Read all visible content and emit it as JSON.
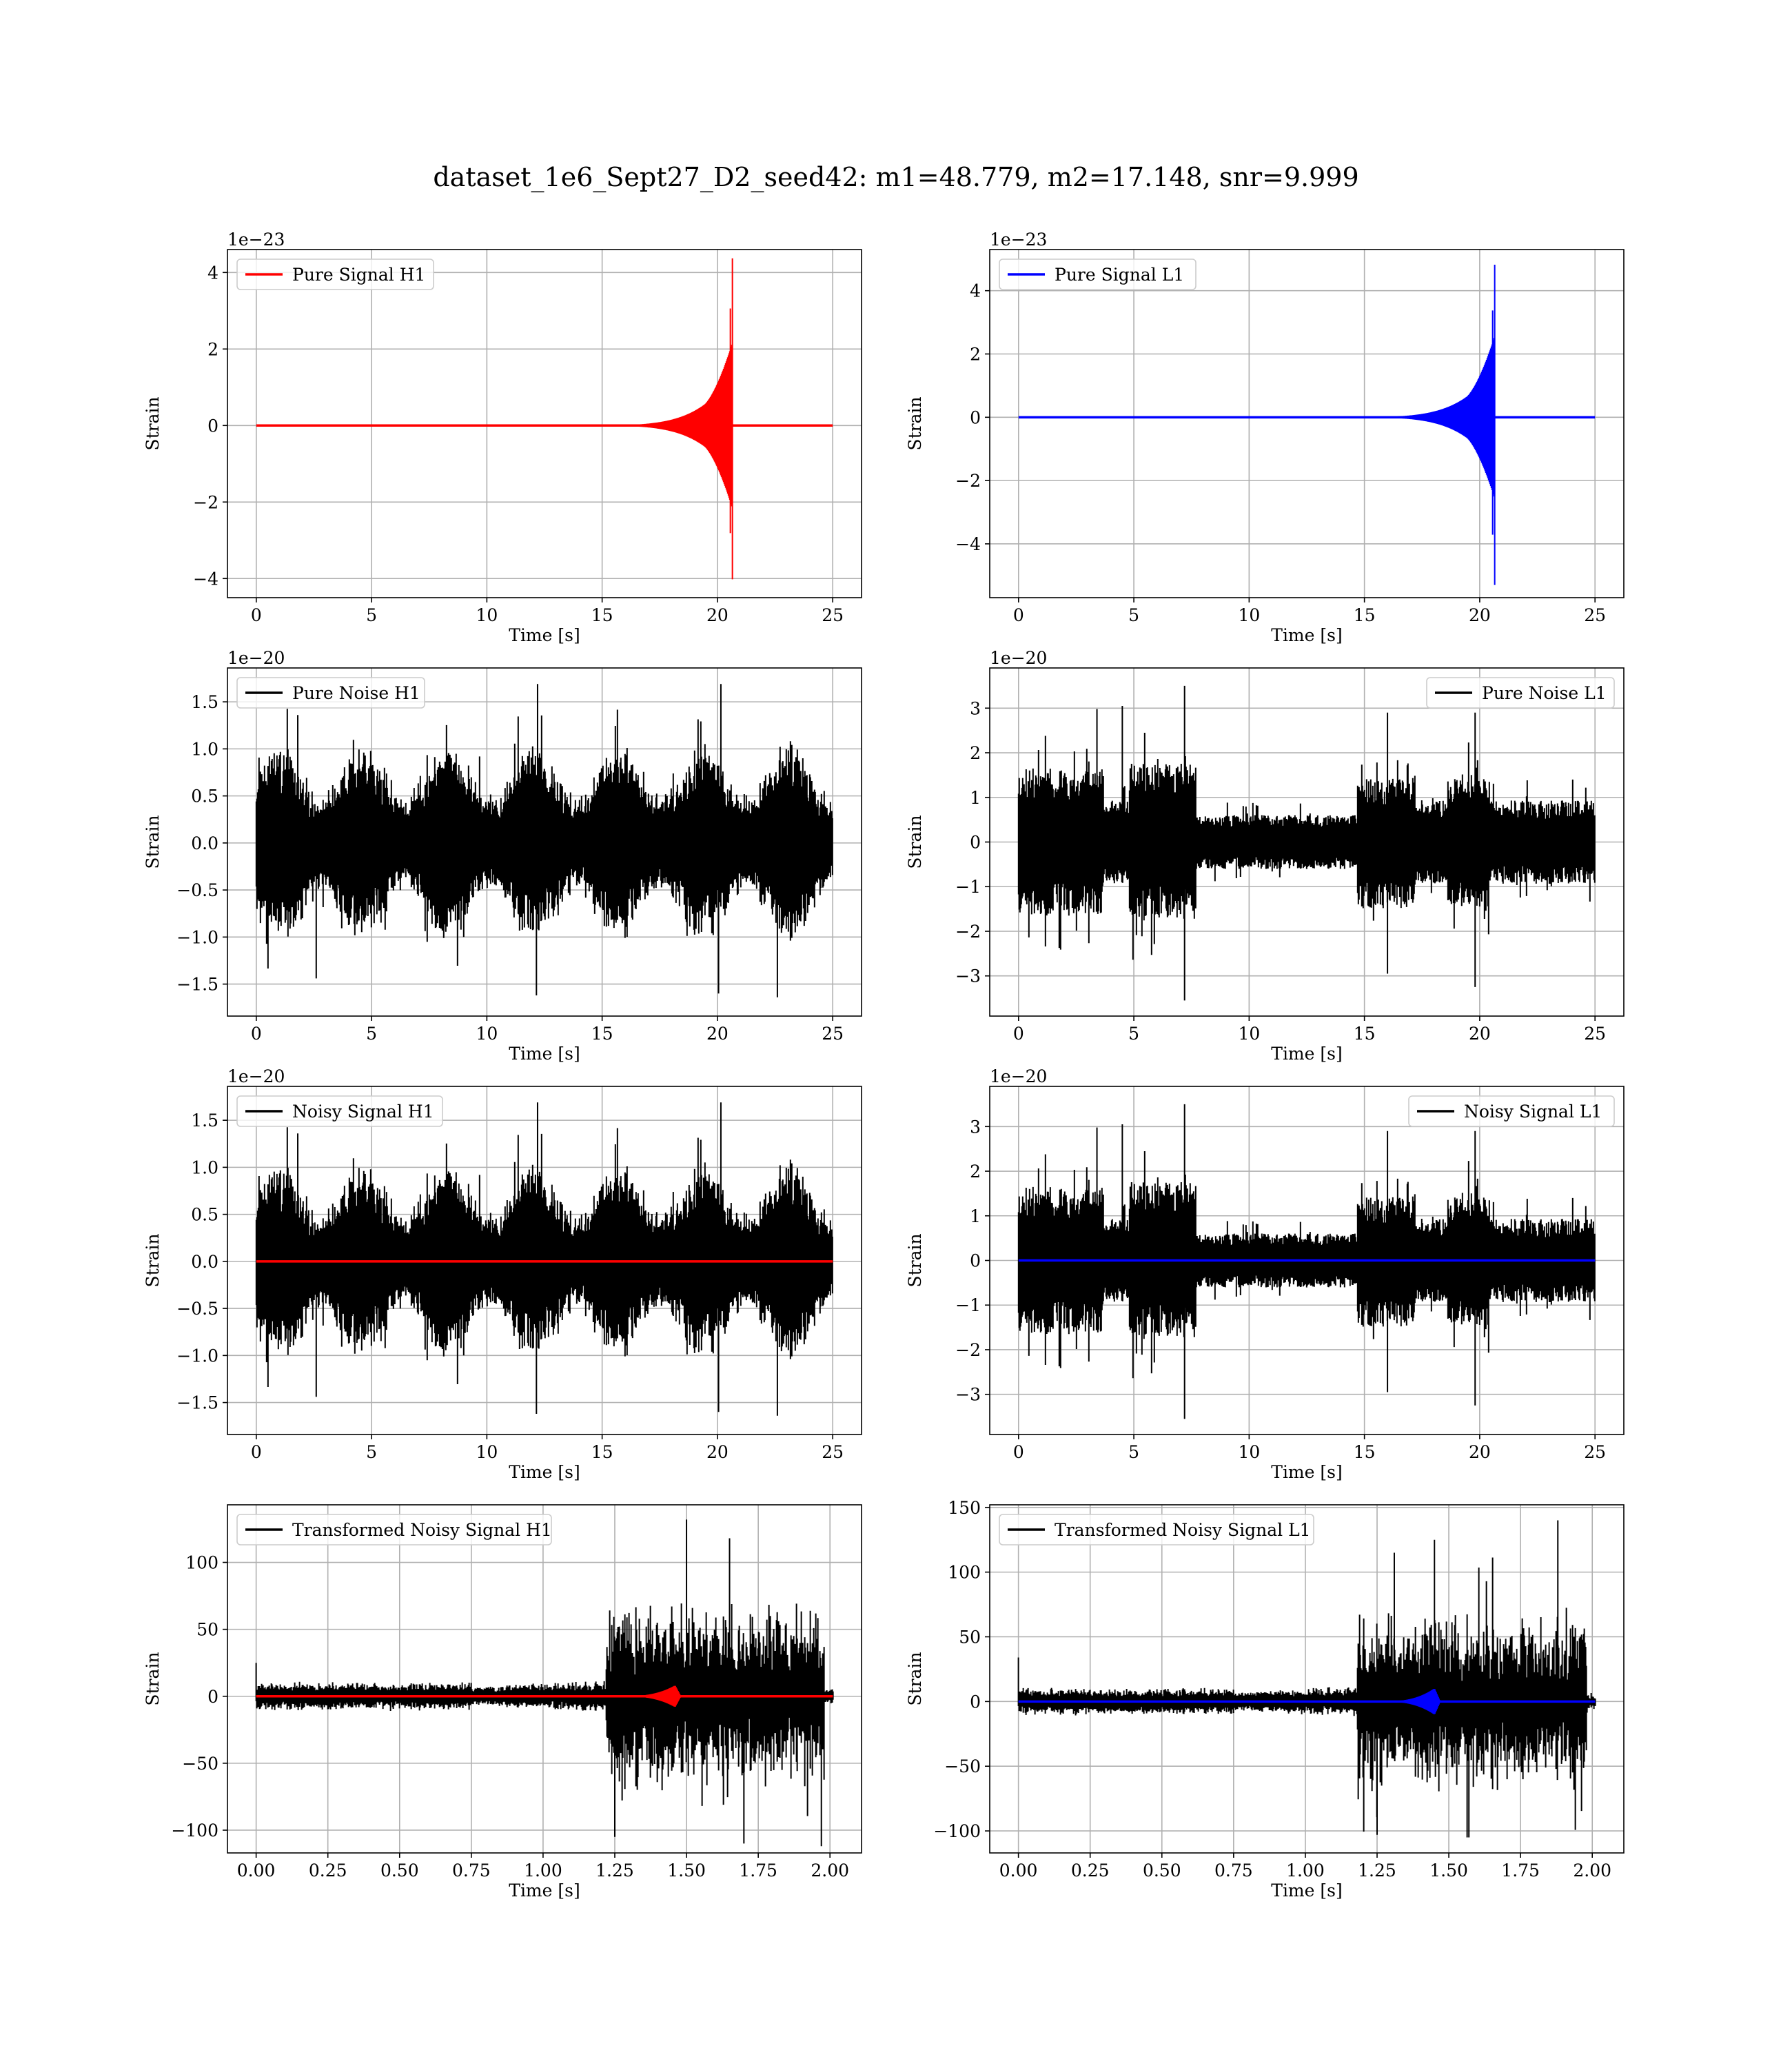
{
  "figure": {
    "title": "dataset_1e6_Sept27_D2_seed42: m1=48.779, m2=17.148, snr=9.999"
  },
  "chart_data": [
    {
      "type": "line",
      "legend": "Pure Signal H1",
      "legend_loc": "upper-left",
      "color": "#ff0000",
      "xlabel": "Time [s]",
      "ylabel": "Strain",
      "offset_text": "1e−23",
      "xlim": [
        -1.25,
        26.25
      ],
      "ylim": [
        -4.5,
        4.6
      ],
      "xticks": [
        0,
        5,
        10,
        15,
        20,
        25
      ],
      "xticklabels": [
        "0",
        "5",
        "10",
        "15",
        "20",
        "25"
      ],
      "yticks": [
        -4,
        -2,
        0,
        2,
        4
      ],
      "yticklabels": [
        "−4",
        "−2",
        "0",
        "2",
        "4"
      ],
      "series": [
        {
          "kind": "chirp",
          "color": "#ff0000",
          "x_start": 0,
          "x_end": 25,
          "t_merge": 20.65,
          "peak_pos": 4.37,
          "peak_neg": -4.02,
          "pre_merge_amp": 1.35,
          "onset": 12.0
        }
      ]
    },
    {
      "type": "line",
      "legend": "Pure Signal L1",
      "legend_loc": "upper-left",
      "color": "#0000ff",
      "xlabel": "Time [s]",
      "ylabel": "Strain",
      "offset_text": "1e−23",
      "xlim": [
        -1.25,
        26.25
      ],
      "ylim": [
        -5.7,
        5.3
      ],
      "xticks": [
        0,
        5,
        10,
        15,
        20,
        25
      ],
      "xticklabels": [
        "0",
        "5",
        "10",
        "15",
        "20",
        "25"
      ],
      "yticks": [
        -4,
        -2,
        0,
        2,
        4
      ],
      "yticklabels": [
        "−4",
        "−2",
        "0",
        "2",
        "4"
      ],
      "series": [
        {
          "kind": "chirp",
          "color": "#0000ff",
          "x_start": 0,
          "x_end": 25,
          "t_merge": 20.65,
          "peak_pos": 4.82,
          "peak_neg": -5.3,
          "pre_merge_amp": 1.6,
          "onset": 12.0
        }
      ]
    },
    {
      "type": "line",
      "legend": "Pure Noise H1",
      "legend_loc": "upper-left",
      "color": "#000000",
      "xlabel": "Time [s]",
      "ylabel": "Strain",
      "offset_text": "1e−20",
      "xlim": [
        -1.25,
        26.25
      ],
      "ylim": [
        -1.84,
        1.86
      ],
      "xticks": [
        0,
        5,
        10,
        15,
        20,
        25
      ],
      "xticklabels": [
        "0",
        "5",
        "10",
        "15",
        "20",
        "25"
      ],
      "yticks": [
        -1.5,
        -1.0,
        -0.5,
        0.0,
        0.5,
        1.0,
        1.5
      ],
      "yticklabels": [
        "−1.5",
        "−1.0",
        "−0.5",
        "0.0",
        "0.5",
        "1.0",
        "1.5"
      ],
      "series": [
        {
          "kind": "noise",
          "color": "#000000",
          "x_start": 0,
          "x_end": 25,
          "base_amp": 0.85,
          "max": 1.69,
          "min": -1.64,
          "seed": 11
        }
      ]
    },
    {
      "type": "line",
      "legend": "Pure Noise L1",
      "legend_loc": "upper-right",
      "color": "#000000",
      "xlabel": "Time [s]",
      "ylabel": "Strain",
      "offset_text": "1e−20",
      "xlim": [
        -1.25,
        26.25
      ],
      "ylim": [
        -3.9,
        3.9
      ],
      "xticks": [
        0,
        5,
        10,
        15,
        20,
        25
      ],
      "xticklabels": [
        "0",
        "5",
        "10",
        "15",
        "20",
        "25"
      ],
      "yticks": [
        -3,
        -2,
        -1,
        0,
        1,
        2,
        3
      ],
      "yticklabels": [
        "−3",
        "−2",
        "−1",
        "0",
        "1",
        "2",
        "3"
      ],
      "series": [
        {
          "kind": "noise_env",
          "color": "#000000",
          "x_start": 0,
          "x_end": 25,
          "max": 3.5,
          "min": -3.55,
          "seed": 23
        }
      ]
    },
    {
      "type": "line",
      "legend": "Noisy Signal H1",
      "legend_loc": "upper-left",
      "color": "#000000",
      "xlabel": "Time [s]",
      "ylabel": "Strain",
      "offset_text": "1e−20",
      "xlim": [
        -1.25,
        26.25
      ],
      "ylim": [
        -1.84,
        1.86
      ],
      "xticks": [
        0,
        5,
        10,
        15,
        20,
        25
      ],
      "xticklabels": [
        "0",
        "5",
        "10",
        "15",
        "20",
        "25"
      ],
      "yticks": [
        -1.5,
        -1.0,
        -0.5,
        0.0,
        0.5,
        1.0,
        1.5
      ],
      "yticklabels": [
        "−1.5",
        "−1.0",
        "−0.5",
        "0.0",
        "0.5",
        "1.0",
        "1.5"
      ],
      "series": [
        {
          "kind": "noise",
          "color": "#000000",
          "x_start": 0,
          "x_end": 25,
          "base_amp": 0.85,
          "max": 1.69,
          "min": -1.64,
          "seed": 11
        },
        {
          "kind": "flat",
          "color": "#ff0000",
          "x_start": 0,
          "x_end": 25,
          "value": 0
        }
      ]
    },
    {
      "type": "line",
      "legend": "Noisy Signal L1",
      "legend_loc": "upper-right",
      "color": "#000000",
      "xlabel": "Time [s]",
      "ylabel": "Strain",
      "offset_text": "1e−20",
      "xlim": [
        -1.25,
        26.25
      ],
      "ylim": [
        -3.9,
        3.9
      ],
      "xticks": [
        0,
        5,
        10,
        15,
        20,
        25
      ],
      "xticklabels": [
        "0",
        "5",
        "10",
        "15",
        "20",
        "25"
      ],
      "yticks": [
        -3,
        -2,
        -1,
        0,
        1,
        2,
        3
      ],
      "yticklabels": [
        "−3",
        "−2",
        "−1",
        "0",
        "1",
        "2",
        "3"
      ],
      "series": [
        {
          "kind": "noise_env",
          "color": "#000000",
          "x_start": 0,
          "x_end": 25,
          "max": 3.5,
          "min": -3.55,
          "seed": 23
        },
        {
          "kind": "flat",
          "color": "#0000ff",
          "x_start": 0,
          "x_end": 25,
          "value": 0
        }
      ]
    },
    {
      "type": "line",
      "legend": "Transformed Noisy Signal H1",
      "legend_loc": "upper-left",
      "color": "#000000",
      "xlabel": "Time [s]",
      "ylabel": "Strain",
      "offset_text": "",
      "xlim": [
        -0.1,
        2.11
      ],
      "ylim": [
        -117,
        143
      ],
      "xticks": [
        0,
        0.25,
        0.5,
        0.75,
        1.0,
        1.25,
        1.5,
        1.75,
        2.0
      ],
      "xticklabels": [
        "0.00",
        "0.25",
        "0.50",
        "0.75",
        "1.00",
        "1.25",
        "1.50",
        "1.75",
        "2.00"
      ],
      "yticks": [
        -100,
        -50,
        0,
        50,
        100
      ],
      "yticklabels": [
        "−100",
        "−50",
        "0",
        "50",
        "100"
      ],
      "series": [
        {
          "kind": "transformed",
          "color": "#000000",
          "x_start": 0,
          "x_end": 2.01,
          "max": 132,
          "min": -112,
          "rise": 1.22,
          "seed": 31
        },
        {
          "kind": "burst",
          "color": "#ff0000",
          "x_start": 0,
          "x_end": 2.01,
          "t_peak": 1.46,
          "amp": 8
        }
      ]
    },
    {
      "type": "line",
      "legend": "Transformed Noisy Signal L1",
      "legend_loc": "upper-left",
      "color": "#000000",
      "xlabel": "Time [s]",
      "ylabel": "Strain",
      "offset_text": "",
      "xlim": [
        -0.1,
        2.11
      ],
      "ylim": [
        -117,
        152
      ],
      "xticks": [
        0,
        0.25,
        0.5,
        0.75,
        1.0,
        1.25,
        1.5,
        1.75,
        2.0
      ],
      "xticklabels": [
        "0.00",
        "0.25",
        "0.50",
        "0.75",
        "1.00",
        "1.25",
        "1.50",
        "1.75",
        "2.00"
      ],
      "yticks": [
        -100,
        -50,
        0,
        50,
        100,
        150
      ],
      "yticklabels": [
        "−100",
        "−50",
        "0",
        "50",
        "100",
        "150"
      ],
      "series": [
        {
          "kind": "transformed",
          "color": "#000000",
          "x_start": 0,
          "x_end": 2.01,
          "max": 140,
          "min": -105,
          "rise": 1.18,
          "seed": 47
        },
        {
          "kind": "burst",
          "color": "#0000ff",
          "x_start": 0,
          "x_end": 2.01,
          "t_peak": 1.45,
          "amp": 10
        }
      ]
    }
  ]
}
